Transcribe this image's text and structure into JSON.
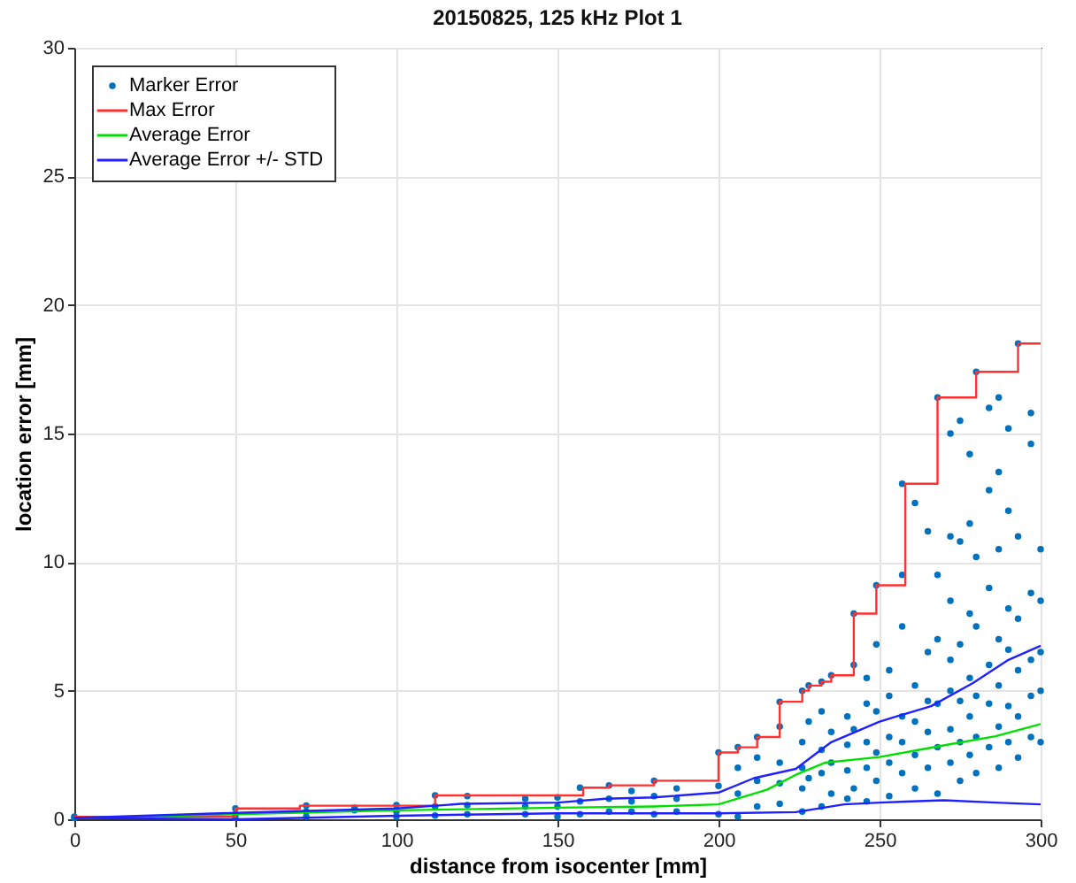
{
  "chart_data": {
    "type": "scatter",
    "title": "20150825, 125 kHz Plot 1",
    "xlabel": "distance from isocenter [mm]",
    "ylabel": "location error [mm]",
    "xlim": [
      0,
      300
    ],
    "xticks": [
      0,
      50,
      100,
      150,
      200,
      250,
      300
    ],
    "ylim": [
      0,
      30
    ],
    "yticks": [
      0,
      5,
      10,
      15,
      20,
      25,
      30
    ],
    "grid": true,
    "legend": "top left",
    "series": [
      {
        "name": "Marker Error",
        "marker": "circle",
        "color": "#0072bd",
        "x": [
          0,
          0,
          50,
          50,
          50,
          72,
          72,
          72,
          87,
          87,
          100,
          100,
          100,
          112,
          112,
          112,
          122,
          122,
          122,
          140,
          140,
          140,
          150,
          150,
          150,
          157,
          157,
          157,
          166,
          166,
          166,
          173,
          173,
          173,
          180,
          180,
          180,
          187,
          187,
          187,
          200,
          200,
          200,
          206,
          206,
          206,
          206,
          212,
          212,
          212,
          212,
          219,
          219,
          219,
          219,
          219,
          226,
          226,
          226,
          226,
          226,
          228,
          228,
          228,
          232,
          232,
          232,
          232,
          232,
          235,
          235,
          235,
          235,
          240,
          240,
          240,
          240,
          242,
          242,
          242,
          242,
          246,
          246,
          246,
          246,
          246,
          249,
          249,
          249,
          249,
          249,
          253,
          253,
          253,
          253,
          253,
          257,
          257,
          257,
          257,
          257,
          257,
          261,
          261,
          261,
          261,
          261,
          265,
          265,
          265,
          265,
          265,
          268,
          268,
          268,
          268,
          268,
          268,
          272,
          272,
          272,
          272,
          272,
          272,
          272,
          275,
          275,
          275,
          275,
          275,
          275,
          278,
          278,
          278,
          278,
          278,
          278,
          280,
          280,
          280,
          280,
          280,
          280,
          284,
          284,
          284,
          284,
          284,
          284,
          287,
          287,
          287,
          287,
          287,
          287,
          287,
          290,
          290,
          290,
          290,
          290,
          290,
          293,
          293,
          293,
          293,
          293,
          293,
          297,
          297,
          297,
          297,
          297,
          297,
          300,
          300,
          300,
          300,
          300
        ],
        "values": [
          0.05,
          0.1,
          0.05,
          0.2,
          0.42,
          0.1,
          0.3,
          0.53,
          0.35,
          0.45,
          0.1,
          0.3,
          0.55,
          0.15,
          0.5,
          0.93,
          0.2,
          0.55,
          0.9,
          0.2,
          0.5,
          0.8,
          0.1,
          0.5,
          0.85,
          0.2,
          0.7,
          1.23,
          0.3,
          0.8,
          1.32,
          0.3,
          0.7,
          1.1,
          0.2,
          0.9,
          1.5,
          0.3,
          0.8,
          1.2,
          0.2,
          1.3,
          2.6,
          0.1,
          1.0,
          2.0,
          2.8,
          0.5,
          1.5,
          2.4,
          3.2,
          0.6,
          1.4,
          2.2,
          3.6,
          4.57,
          0.3,
          1.2,
          2.0,
          3.0,
          5.0,
          1.6,
          3.8,
          5.2,
          0.5,
          1.8,
          2.7,
          4.2,
          5.35,
          1.0,
          2.2,
          3.4,
          5.6,
          0.8,
          1.9,
          2.9,
          4.0,
          1.2,
          3.5,
          6.0,
          8.0,
          0.7,
          2.0,
          3.0,
          4.5,
          5.5,
          1.5,
          2.6,
          4.2,
          6.8,
          9.1,
          0.9,
          2.2,
          3.2,
          4.8,
          5.8,
          1.8,
          3.0,
          4.0,
          7.5,
          9.5,
          13.05,
          1.2,
          2.5,
          3.8,
          5.2,
          12.3,
          2.0,
          3.4,
          4.6,
          6.5,
          11.2,
          1.0,
          2.8,
          4.5,
          7.0,
          9.5,
          16.4,
          2.2,
          3.5,
          5.0,
          6.2,
          8.5,
          11.0,
          15.0,
          1.5,
          3.0,
          4.6,
          6.8,
          10.8,
          15.5,
          2.5,
          4.0,
          5.5,
          8.0,
          11.5,
          14.2,
          1.8,
          3.2,
          4.8,
          7.5,
          10.2,
          17.4,
          2.8,
          4.5,
          6.0,
          9.0,
          12.8,
          16.0,
          2.0,
          3.6,
          5.2,
          7.0,
          10.5,
          13.5,
          16.4,
          3.0,
          4.4,
          6.6,
          8.2,
          12.0,
          15.2,
          2.4,
          4.0,
          5.8,
          7.8,
          11.0,
          18.5,
          3.2,
          4.8,
          6.2,
          8.8,
          14.6,
          15.8,
          3.0,
          5.0,
          6.5,
          8.5,
          10.5
        ]
      },
      {
        "name": "Max Error",
        "type": "step",
        "color": "#ff3030",
        "x": [
          0,
          50,
          70,
          112,
          158,
          166,
          180,
          200,
          206,
          212,
          219,
          226,
          228,
          232,
          235,
          242,
          249,
          258,
          268,
          280,
          293,
          300
        ],
        "values": [
          0.1,
          0.42,
          0.53,
          0.93,
          1.23,
          1.32,
          1.5,
          2.6,
          2.8,
          3.2,
          4.57,
          5.0,
          5.2,
          5.35,
          5.6,
          8.0,
          9.1,
          13.05,
          16.4,
          17.4,
          18.5,
          18.5
        ]
      },
      {
        "name": "Average Error",
        "type": "line",
        "color": "#00e000",
        "x": [
          0,
          50,
          100,
          150,
          180,
          200,
          215,
          224,
          233,
          250,
          260,
          271,
          286,
          300
        ],
        "values": [
          0.05,
          0.2,
          0.35,
          0.45,
          0.5,
          0.58,
          1.15,
          1.73,
          2.2,
          2.42,
          2.65,
          2.9,
          3.23,
          3.7
        ]
      },
      {
        "name": "Average Error +/- STD",
        "type": "line",
        "color": "#2020ff",
        "x": [
          0,
          50,
          100,
          120,
          150,
          165,
          180,
          200,
          211,
          224,
          235,
          250,
          266,
          279,
          290,
          300
        ],
        "values": [
          0.05,
          0.25,
          0.42,
          0.6,
          0.65,
          0.8,
          0.85,
          1.04,
          1.6,
          1.96,
          3.0,
          3.8,
          4.4,
          5.3,
          6.2,
          6.75
        ]
      },
      {
        "type": "line",
        "color": "#2020ff",
        "x": [
          0,
          50,
          100,
          150,
          200,
          224,
          239,
          250,
          270,
          286,
          300
        ],
        "values": [
          0.05,
          0.0,
          0.14,
          0.23,
          0.23,
          0.28,
          0.58,
          0.65,
          0.74,
          0.65,
          0.58
        ]
      }
    ]
  }
}
